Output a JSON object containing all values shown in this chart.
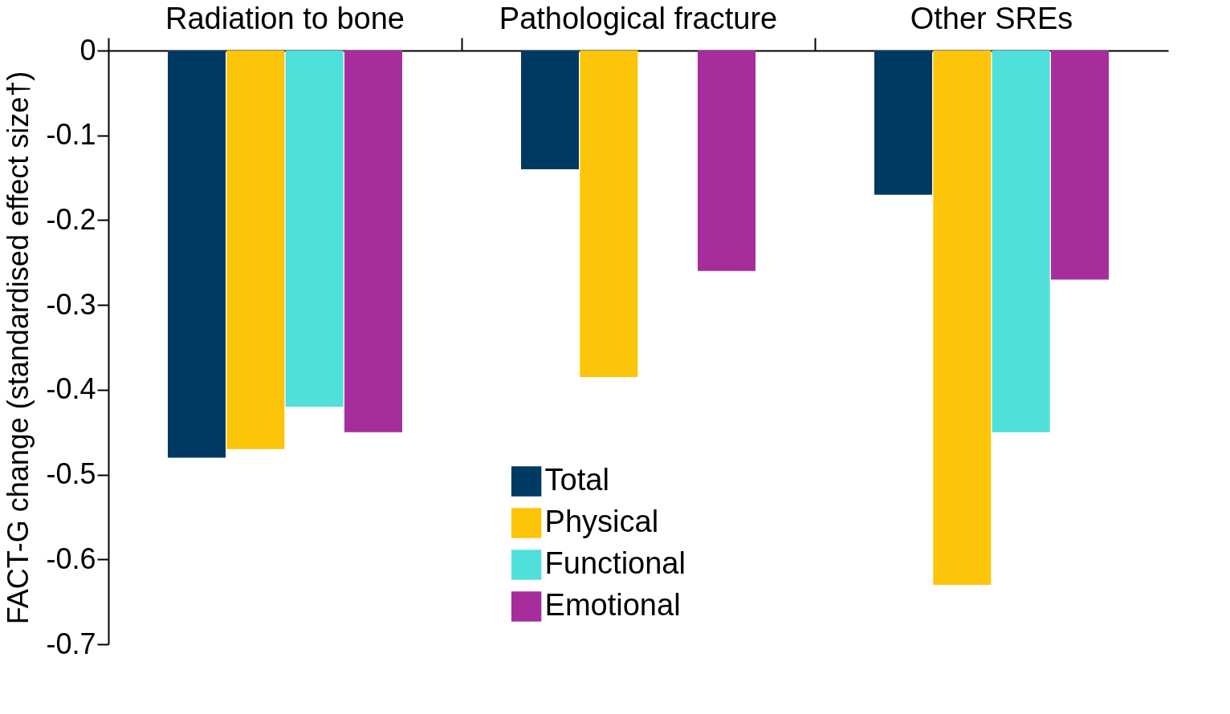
{
  "chart_data": {
    "type": "bar",
    "categories": [
      "Radiation to bone",
      "Pathological fracture",
      "Other SREs"
    ],
    "ylabel": "FACT-G change (standardised effect size†)",
    "series": [
      {
        "name": "Total",
        "color": "#003a63",
        "values": [
          -0.48,
          -0.14,
          -0.17
        ]
      },
      {
        "name": "Physical",
        "color": "#fcc50a",
        "values": [
          -0.47,
          -0.385,
          -0.63
        ]
      },
      {
        "name": "Functional",
        "color": "#4fe0dc",
        "values": [
          -0.42,
          null,
          -0.45
        ]
      },
      {
        "name": "Emotional",
        "color": "#a62d9b",
        "values": [
          -0.45,
          -0.26,
          -0.27
        ]
      }
    ],
    "ylim": [
      -0.7,
      0
    ],
    "yticks": [
      0,
      -0.1,
      -0.2,
      -0.3,
      -0.4,
      -0.5,
      -0.6,
      -0.7
    ],
    "grid": false,
    "legend": "bottom"
  }
}
